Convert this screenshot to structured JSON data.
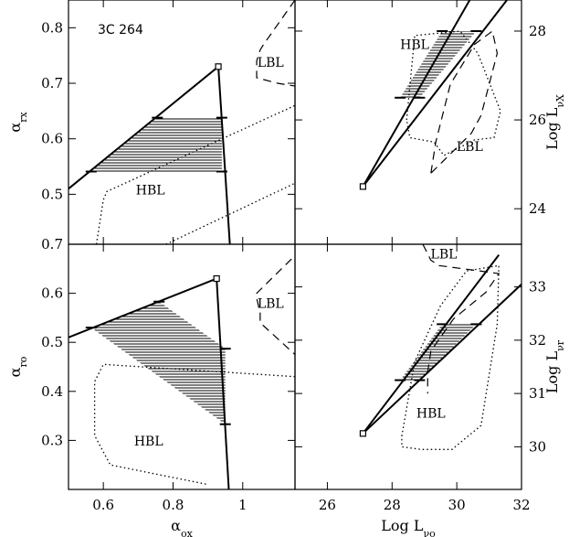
{
  "figure": {
    "source_name": "3C 264"
  },
  "chart_data": [
    {
      "id": "tl",
      "type": "line",
      "xlabel": "",
      "ylabel": "α_rx",
      "xlim": [
        0.5,
        1.15
      ],
      "ylim": [
        0.41,
        0.85
      ],
      "yticks": [
        0.5,
        0.6,
        0.7,
        0.8
      ],
      "ytick_labels": [
        "0.5",
        "0.6",
        "0.7",
        "0.8"
      ],
      "xticks": [
        0.6,
        0.8,
        1.0
      ],
      "xtick_labels": [],
      "source_label": "3C 264",
      "annotations": [
        {
          "text": "HBL",
          "x": 0.735,
          "y": 0.5
        },
        {
          "text": "LBL",
          "x": 1.08,
          "y": 0.73
        }
      ],
      "series": [
        {
          "name": "upper-envelope",
          "style": "solid",
          "x": [
            0.5,
            0.93
          ],
          "y": [
            0.51,
            0.73
          ]
        },
        {
          "name": "steep-edge",
          "style": "solid",
          "x": [
            0.93,
            0.963
          ],
          "y": [
            0.73,
            0.41
          ]
        },
        {
          "name": "LBL-region",
          "style": "dashed",
          "x": [
            1.15,
            1.06,
            1.05,
            1.04,
            1.04,
            1.1,
            1.15
          ],
          "y": [
            0.85,
            0.77,
            0.76,
            0.74,
            0.71,
            0.7,
            0.695
          ]
        },
        {
          "name": "HBL-region",
          "style": "dotted",
          "x": [
            0.58,
            0.6,
            0.61,
            1.15
          ],
          "y": [
            0.41,
            0.49,
            0.505,
            0.66
          ]
        },
        {
          "name": "HBL-region-lower",
          "style": "dotted",
          "x": [
            0.78,
            1.15
          ],
          "y": [
            0.41,
            0.52
          ]
        }
      ],
      "shaded_region": {
        "x": [
          0.565,
          0.755,
          0.94,
          0.94
        ],
        "y": [
          0.541,
          0.638,
          0.638,
          0.541
        ]
      },
      "markers": [
        {
          "x": 0.565,
          "y": 0.541,
          "shape": "tick"
        },
        {
          "x": 0.755,
          "y": 0.638,
          "shape": "tick"
        },
        {
          "x": 0.94,
          "y": 0.638,
          "shape": "tick"
        },
        {
          "x": 0.94,
          "y": 0.541,
          "shape": "tick"
        },
        {
          "x": 0.93,
          "y": 0.73,
          "shape": "square"
        }
      ]
    },
    {
      "id": "tr",
      "type": "line",
      "xlabel": "",
      "ylabel": "Log L_νX",
      "xlim": [
        25,
        32
      ],
      "ylim": [
        23.2,
        28.7
      ],
      "yticks": [
        24,
        26,
        28
      ],
      "ytick_labels": [
        "24",
        "26",
        "28"
      ],
      "xticks": [
        26,
        28,
        30,
        32
      ],
      "xtick_labels": [],
      "annotations": [
        {
          "text": "HBL",
          "x": 28.7,
          "y": 27.6
        },
        {
          "text": "LBL",
          "x": 30.4,
          "y": 25.3
        }
      ],
      "series": [
        {
          "name": "steep-line",
          "style": "solid",
          "x": [
            27.1,
            30.4
          ],
          "y": [
            24.5,
            28.7
          ]
        },
        {
          "name": "shallow-line",
          "style": "solid",
          "x": [
            27.1,
            31.55
          ],
          "y": [
            24.5,
            28.7
          ]
        },
        {
          "name": "HBL-region",
          "style": "dotted",
          "x": [
            28.45,
            28.7,
            30.1,
            30.65,
            31.35,
            31.15,
            30.55,
            29.6,
            29.3,
            28.55,
            28.45
          ],
          "y": [
            26.0,
            27.9,
            28.0,
            27.5,
            26.2,
            25.6,
            25.55,
            25.2,
            25.5,
            25.6,
            26.0
          ]
        },
        {
          "name": "LBL-region",
          "style": "dashed",
          "x": [
            29.2,
            29.35,
            29.8,
            30.55,
            31.1,
            31.25,
            30.75,
            30.45,
            29.2
          ],
          "y": [
            24.8,
            25.5,
            26.8,
            27.7,
            28.0,
            27.5,
            26.1,
            25.7,
            24.8
          ]
        }
      ],
      "shaded_region": {
        "x": [
          28.25,
          28.85,
          30.6,
          29.55
        ],
        "y": [
          26.5,
          26.5,
          28.0,
          28.0
        ]
      },
      "markers": [
        {
          "x": 28.25,
          "y": 26.5,
          "shape": "tick"
        },
        {
          "x": 28.85,
          "y": 26.5,
          "shape": "tick"
        },
        {
          "x": 29.55,
          "y": 28.0,
          "shape": "tick"
        },
        {
          "x": 30.6,
          "y": 28.0,
          "shape": "tick"
        },
        {
          "x": 27.1,
          "y": 24.5,
          "shape": "square"
        }
      ]
    },
    {
      "id": "bl",
      "type": "line",
      "xlabel": "α_ox",
      "ylabel": "α_ro",
      "xlim": [
        0.5,
        1.15
      ],
      "ylim": [
        0.2,
        0.7
      ],
      "yticks": [
        0.3,
        0.4,
        0.5,
        0.6,
        0.7
      ],
      "ytick_labels": [
        "0.3",
        "0.4",
        "0.5",
        "0.6",
        "0.7"
      ],
      "xticks": [
        0.6,
        0.8,
        1.0
      ],
      "xtick_labels": [
        "0.6",
        "0.8",
        "1"
      ],
      "annotations": [
        {
          "text": "HBL",
          "x": 0.73,
          "y": 0.29
        },
        {
          "text": "LBL",
          "x": 1.08,
          "y": 0.57
        }
      ],
      "series": [
        {
          "name": "upper-envelope",
          "style": "solid",
          "x": [
            0.5,
            0.925
          ],
          "y": [
            0.51,
            0.63
          ]
        },
        {
          "name": "steep-edge",
          "style": "solid",
          "x": [
            0.925,
            0.96
          ],
          "y": [
            0.63,
            0.2
          ]
        },
        {
          "name": "LBL-region",
          "style": "dashed",
          "x": [
            1.14,
            1.04,
            1.04,
            1.05,
            1.05,
            1.15
          ],
          "y": [
            0.67,
            0.6,
            0.59,
            0.56,
            0.54,
            0.475
          ]
        },
        {
          "name": "HBL-region",
          "style": "dotted",
          "x": [
            1.15,
            0.6,
            0.575,
            0.575,
            0.62,
            0.9
          ],
          "y": [
            0.43,
            0.455,
            0.42,
            0.31,
            0.25,
            0.21
          ]
        }
      ],
      "shaded_region": {
        "x": [
          0.565,
          0.76,
          0.95,
          0.95
        ],
        "y": [
          0.53,
          0.583,
          0.487,
          0.333
        ]
      },
      "markers": [
        {
          "x": 0.565,
          "y": 0.53,
          "shape": "tick"
        },
        {
          "x": 0.76,
          "y": 0.583,
          "shape": "tick"
        },
        {
          "x": 0.95,
          "y": 0.487,
          "shape": "tick"
        },
        {
          "x": 0.95,
          "y": 0.333,
          "shape": "tick"
        },
        {
          "x": 0.925,
          "y": 0.63,
          "shape": "square"
        }
      ]
    },
    {
      "id": "br",
      "type": "line",
      "xlabel": "Log L_νo",
      "ylabel": "Log L_νr",
      "xlim": [
        25,
        32
      ],
      "ylim": [
        29.2,
        33.8
      ],
      "yticks": [
        30,
        31,
        32,
        33
      ],
      "ytick_labels": [
        "30",
        "31",
        "32",
        "33"
      ],
      "xticks": [
        26,
        28,
        30,
        32
      ],
      "xtick_labels": [
        "26",
        "28",
        "30",
        "32"
      ],
      "annotations": [
        {
          "text": "HBL",
          "x": 29.2,
          "y": 30.55
        },
        {
          "text": "LBL",
          "x": 29.6,
          "y": 33.53
        }
      ],
      "series": [
        {
          "name": "steep-line",
          "style": "solid",
          "x": [
            27.1,
            31.3
          ],
          "y": [
            30.25,
            33.6
          ]
        },
        {
          "name": "shallow-line",
          "style": "solid",
          "x": [
            27.1,
            32
          ],
          "y": [
            30.25,
            33.05
          ]
        },
        {
          "name": "LBL-region",
          "style": "dashed",
          "x": [
            28.95,
            29.2,
            29.45,
            30.7,
            31.3,
            30.9,
            29.9,
            29.2,
            29.1,
            29.1
          ],
          "y": [
            33.8,
            33.5,
            33.4,
            33.3,
            33.25,
            32.9,
            32.4,
            31.8,
            31.4,
            31.0
          ]
        },
        {
          "name": "HBL-region",
          "style": "dotted",
          "x": [
            28.3,
            28.7,
            29.5,
            30.3,
            31.3,
            31.25,
            30.75,
            29.85,
            28.9,
            28.3,
            28.3
          ],
          "y": [
            30.2,
            31.6,
            32.65,
            33.3,
            33.4,
            32.3,
            30.4,
            29.95,
            29.95,
            30.0,
            30.2
          ]
        }
      ],
      "shaded_region": {
        "x": [
          28.25,
          28.85,
          30.6,
          29.55
        ],
        "y": [
          31.25,
          31.25,
          32.3,
          32.3
        ]
      },
      "markers": [
        {
          "x": 28.25,
          "y": 31.25,
          "shape": "tick"
        },
        {
          "x": 28.85,
          "y": 31.25,
          "shape": "tick"
        },
        {
          "x": 29.55,
          "y": 32.3,
          "shape": "tick"
        },
        {
          "x": 30.6,
          "y": 32.3,
          "shape": "tick"
        },
        {
          "x": 27.1,
          "y": 30.25,
          "shape": "square"
        }
      ]
    }
  ]
}
